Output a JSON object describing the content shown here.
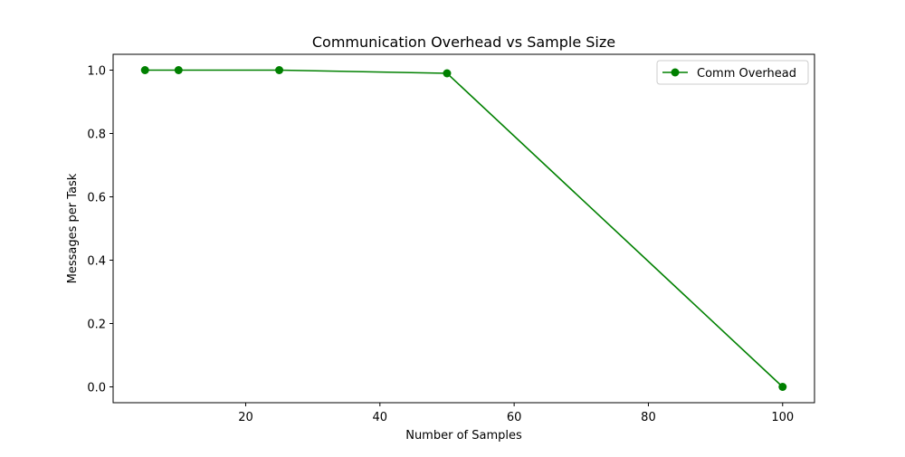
{
  "chart_data": {
    "type": "line",
    "title": "Communication Overhead vs Sample Size",
    "xlabel": "Number of Samples",
    "ylabel": "Messages per Task",
    "xlim": [
      0.25,
      104.75
    ],
    "ylim": [
      -0.05,
      1.05
    ],
    "xticks": [
      20,
      40,
      60,
      80,
      100
    ],
    "xtick_labels": [
      "20",
      "40",
      "60",
      "80",
      "100"
    ],
    "yticks": [
      0.0,
      0.2,
      0.4,
      0.6,
      0.8,
      1.0
    ],
    "ytick_labels": [
      "0.0",
      "0.2",
      "0.4",
      "0.6",
      "0.8",
      "1.0"
    ],
    "grid": false,
    "legend_position": "upper right",
    "series": [
      {
        "name": "Comm Overhead",
        "color": "#008000",
        "marker": "circle",
        "x": [
          5,
          10,
          25,
          50,
          100
        ],
        "y": [
          1.0,
          1.0,
          1.0,
          0.99,
          0.0
        ]
      }
    ]
  }
}
